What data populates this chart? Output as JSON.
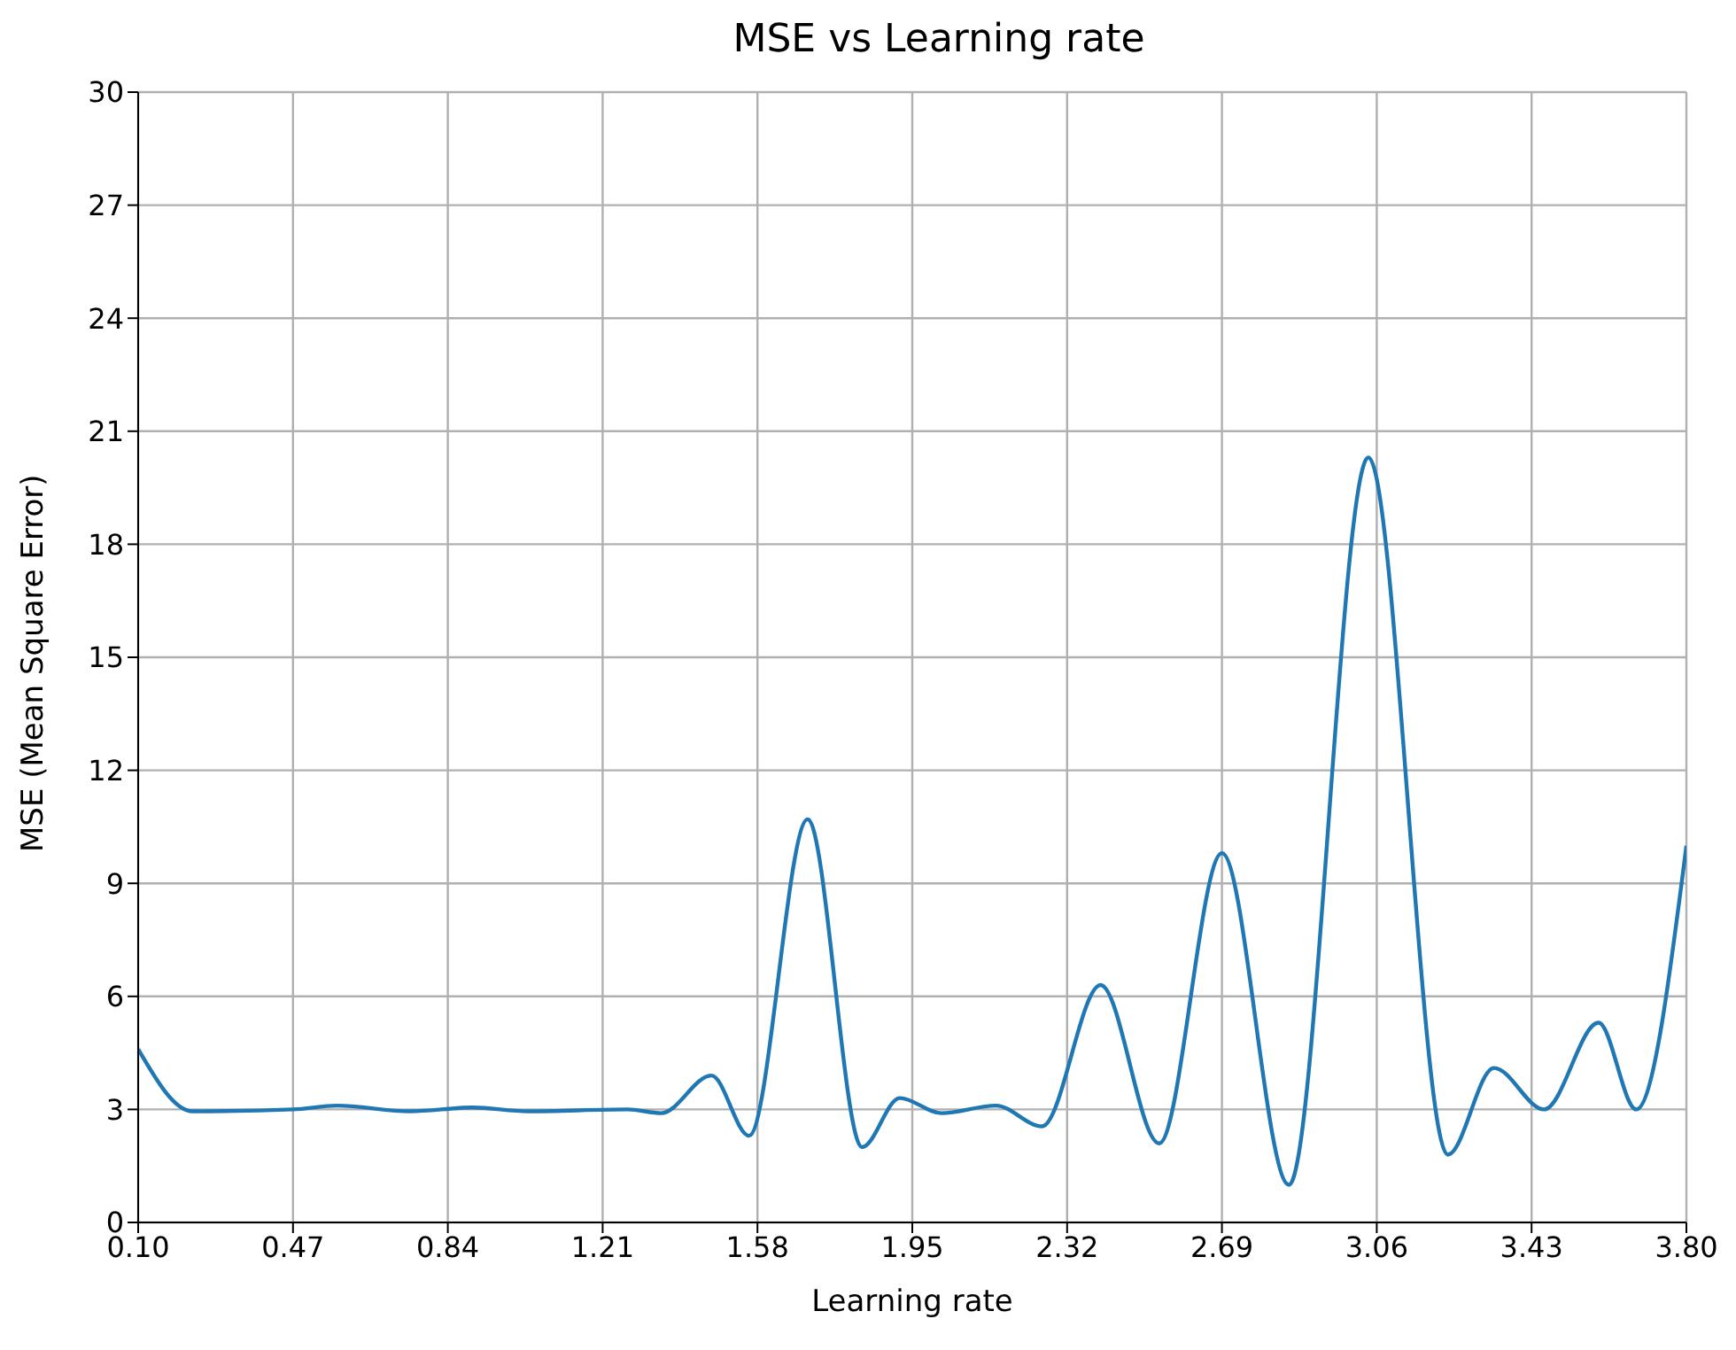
{
  "chart_data": {
    "type": "line",
    "title": "MSE vs Learning rate",
    "xlabel": "Learning rate",
    "ylabel": "MSE (Mean Square Error)",
    "x": [
      0.1,
      0.23,
      0.47,
      0.575,
      0.75,
      0.9,
      1.03,
      1.27,
      1.35,
      1.47,
      1.56,
      1.7,
      1.83,
      1.92,
      2.02,
      2.15,
      2.26,
      2.4,
      2.54,
      2.69,
      2.85,
      3.04,
      3.23,
      3.34,
      3.46,
      3.59,
      3.68,
      3.8
    ],
    "series": [
      {
        "color": "#1f77b4",
        "values": [
          4.6,
          2.95,
          3.0,
          3.1,
          2.95,
          3.05,
          2.95,
          3.0,
          2.9,
          3.9,
          2.3,
          10.7,
          2.0,
          3.3,
          2.9,
          3.1,
          2.55,
          6.3,
          2.1,
          9.8,
          1.0,
          20.3,
          1.8,
          4.1,
          3.0,
          5.3,
          3.0,
          10.0
        ]
      }
    ],
    "xlim": [
      0.1,
      3.8
    ],
    "xticks": [
      {
        "value": 0.1,
        "label": "0.10"
      },
      0.47,
      0.84,
      1.21,
      1.58,
      1.95,
      2.32,
      2.69,
      3.06,
      3.43,
      {
        "value": 3.8,
        "label": "3.80"
      }
    ],
    "ylim": [
      0,
      30
    ],
    "yticks": [
      0,
      3,
      6,
      9,
      12,
      15,
      18,
      21,
      24,
      27,
      30
    ],
    "grid": true,
    "marker": "none",
    "line_style": "solid"
  }
}
